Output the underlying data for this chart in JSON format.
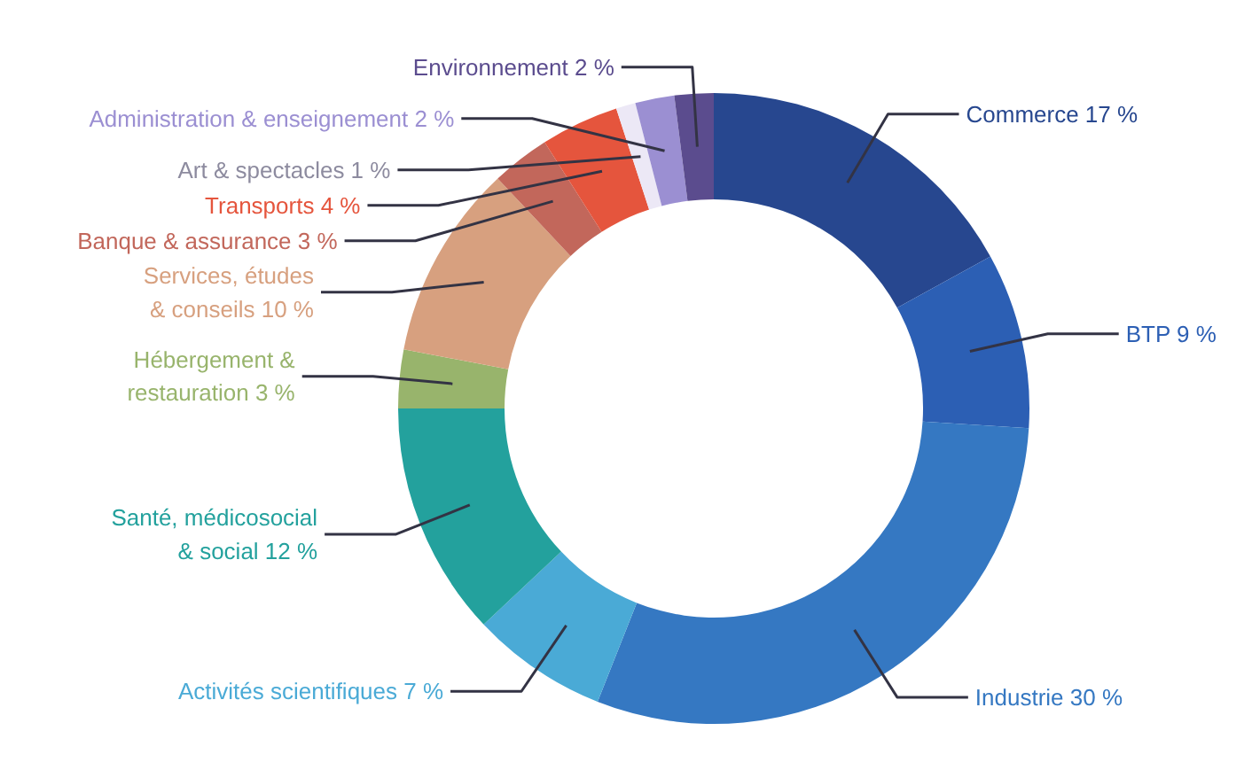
{
  "chart_data": {
    "type": "donut",
    "categories": [
      "Commerce",
      "BTP",
      "Industrie",
      "Activités scientifiques",
      "Santé, médicosocial & social",
      "Hébergement & restauration",
      "Services, études & conseils",
      "Banque & assurance",
      "Transports",
      "Art & spectacles",
      "Administration & enseignement",
      "Environnement"
    ],
    "values": [
      17,
      9,
      30,
      7,
      12,
      3,
      10,
      3,
      4,
      1,
      2,
      2
    ],
    "value_labels": [
      "17 %",
      "9 %",
      "30 %",
      "7 %",
      "12 %",
      "3 %",
      "10 %",
      "3 %",
      "4 %",
      "1 %",
      "2 %",
      "2 %"
    ],
    "colors": [
      "#27478f",
      "#2c5fb4",
      "#3578c2",
      "#4aaad6",
      "#23a19d",
      "#98b46c",
      "#d7a07f",
      "#c2675b",
      "#e5553d",
      "#ece8f6",
      "#9b8fd2",
      "#5b4c8e"
    ]
  }
}
